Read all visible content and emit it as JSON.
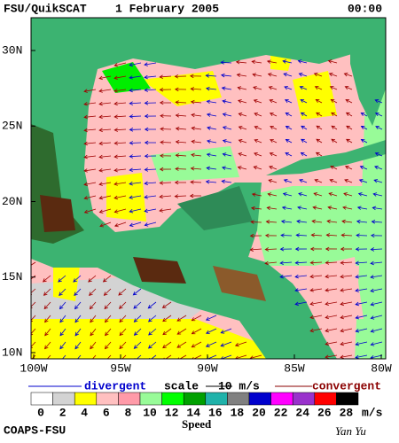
{
  "header": {
    "product": "FSU/QuikSCAT",
    "date": "1 February 2005",
    "time": "00:00"
  },
  "map": {
    "lat_labels": [
      "30N",
      "25N",
      "20N",
      "15N",
      "10N"
    ],
    "lon_labels": [
      "100W",
      "95W",
      "90W",
      "85W",
      "80W"
    ]
  },
  "legend": {
    "divergent": "divergent",
    "scale": "scale",
    "scale_value": "10 m/s",
    "convergent": "convergent"
  },
  "colorbar": {
    "labels": [
      0,
      2,
      4,
      6,
      8,
      10,
      12,
      14,
      16,
      18,
      20,
      22,
      24,
      26,
      28
    ],
    "unit": "m/s",
    "title": "Speed",
    "colors": [
      "#ffffff",
      "#d3d3d3",
      "#ffff00",
      "#ffc0c0",
      "#ff9aa8",
      "#98fb98",
      "#00ff00",
      "#00a000",
      "#20b2aa",
      "#808080",
      "#0000cd",
      "#ff00ff",
      "#9932cc",
      "#ff0000",
      "#000000"
    ]
  },
  "footer": {
    "credit": "COAPS-FSU",
    "author": "Yan Yu"
  }
}
